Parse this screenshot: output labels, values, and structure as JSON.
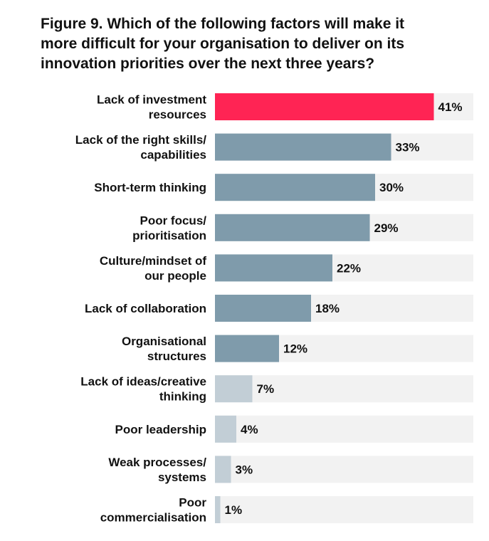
{
  "chart_data": {
    "type": "bar",
    "orientation": "horizontal",
    "title": "Figure 9. Which of the following factors will make it\nmore difficult for your organisation to deliver on its\ninnovation priorities over the next three years?",
    "categories": [
      "Lack of investment\nresources",
      "Lack of the right skills/\ncapabilities",
      "Short-term thinking",
      "Poor focus/\nprioritisation",
      "Culture/mindset of\nour people",
      "Lack of collaboration",
      "Organisational\nstructures",
      "Lack of ideas/creative\nthinking",
      "Poor leadership",
      "Weak processes/\nsystems",
      "Poor\ncommercialisation"
    ],
    "values": [
      41,
      33,
      30,
      29,
      22,
      18,
      12,
      7,
      4,
      3,
      1
    ],
    "value_labels": [
      "41%",
      "33%",
      "30%",
      "29%",
      "22%",
      "18%",
      "12%",
      "7%",
      "4%",
      "3%",
      "1%"
    ],
    "colors": [
      "#ff2454",
      "#7f9bab",
      "#7f9bab",
      "#7f9bab",
      "#7f9bab",
      "#7f9bab",
      "#7f9bab",
      "#c2ced6",
      "#c2ced6",
      "#c2ced6",
      "#c2ced6"
    ]
  }
}
